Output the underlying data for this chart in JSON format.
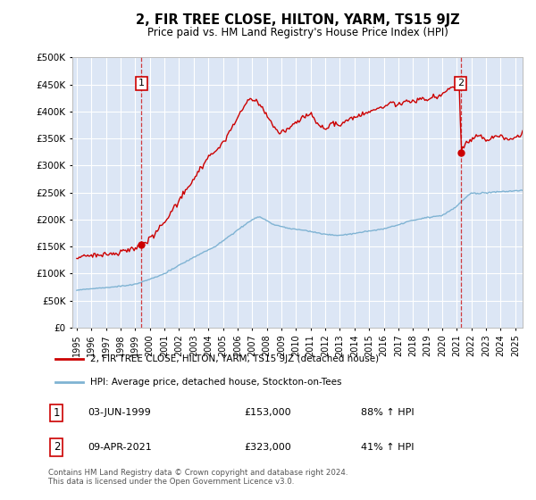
{
  "title": "2, FIR TREE CLOSE, HILTON, YARM, TS15 9JZ",
  "subtitle": "Price paid vs. HM Land Registry's House Price Index (HPI)",
  "ylim": [
    0,
    500000
  ],
  "yticks": [
    0,
    50000,
    100000,
    150000,
    200000,
    250000,
    300000,
    350000,
    400000,
    450000,
    500000
  ],
  "xlim_start": 1994.7,
  "xlim_end": 2025.5,
  "bg_color": "#dce6f5",
  "grid_color": "#ffffff",
  "sale1_date": 1999.42,
  "sale1_price": 153000,
  "sale2_date": 2021.27,
  "sale2_price": 323000,
  "red_line_color": "#cc0000",
  "blue_line_color": "#7fb3d3",
  "legend_label_red": "2, FIR TREE CLOSE, HILTON, YARM, TS15 9JZ (detached house)",
  "legend_label_blue": "HPI: Average price, detached house, Stockton-on-Tees",
  "annotation1_text": "03-JUN-1999",
  "annotation1_price": "£153,000",
  "annotation1_hpi": "88% ↑ HPI",
  "annotation2_text": "09-APR-2021",
  "annotation2_price": "£323,000",
  "annotation2_hpi": "41% ↑ HPI",
  "footer": "Contains HM Land Registry data © Crown copyright and database right 2024.\nThis data is licensed under the Open Government Licence v3.0.",
  "xtick_years": [
    1995,
    1996,
    1997,
    1998,
    1999,
    2000,
    2001,
    2002,
    2003,
    2004,
    2005,
    2006,
    2007,
    2008,
    2009,
    2010,
    2011,
    2012,
    2013,
    2014,
    2015,
    2016,
    2017,
    2018,
    2019,
    2020,
    2021,
    2022,
    2023,
    2024,
    2025
  ]
}
